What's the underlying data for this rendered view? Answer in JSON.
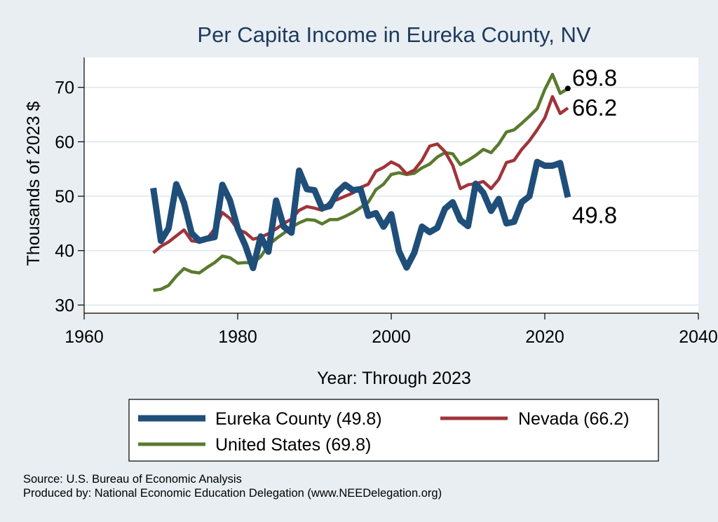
{
  "chart_data": {
    "type": "line",
    "title": "Per Capita Income in Eureka County, NV",
    "xlabel": "Year: Through 2023",
    "ylabel": "Thousands of 2023 $",
    "xlim": [
      1960,
      2040
    ],
    "ylim": [
      28.5,
      75.5
    ],
    "xticks": [
      1960,
      1980,
      2000,
      2020,
      2040
    ],
    "yticks": [
      30,
      40,
      50,
      60,
      70
    ],
    "x": [
      1969,
      1970,
      1971,
      1972,
      1973,
      1974,
      1975,
      1976,
      1977,
      1978,
      1979,
      1980,
      1981,
      1982,
      1983,
      1984,
      1985,
      1986,
      1987,
      1988,
      1989,
      1990,
      1991,
      1992,
      1993,
      1994,
      1995,
      1996,
      1997,
      1998,
      1999,
      2000,
      2001,
      2002,
      2003,
      2004,
      2005,
      2006,
      2007,
      2008,
      2009,
      2010,
      2011,
      2012,
      2013,
      2014,
      2015,
      2016,
      2017,
      2018,
      2019,
      2020,
      2021,
      2022,
      2023
    ],
    "series": [
      {
        "name": "Eureka County",
        "color": "#1f4e79",
        "values": [
          51.5,
          41.8,
          44.1,
          52.2,
          48.8,
          43.2,
          41.8,
          42.2,
          42.5,
          52.1,
          49.2,
          44.1,
          40.9,
          36.8,
          42.6,
          39.8,
          49.2,
          44.4,
          43.3,
          54.7,
          51.3,
          51.1,
          47.8,
          48.2,
          50.8,
          52.1,
          51.1,
          51.3,
          46.4,
          46.9,
          44.4,
          46.7,
          39.9,
          36.9,
          39.6,
          44.4,
          43.4,
          44.2,
          47.7,
          48.9,
          45.6,
          44.5,
          52.3,
          50.6,
          47.3,
          49.5,
          45.0,
          45.3,
          48.9,
          50.0,
          56.3,
          55.6,
          55.6,
          56.1,
          49.8
        ]
      },
      {
        "name": "Nevada",
        "color": "#a0343a",
        "values": [
          39.6,
          40.8,
          41.6,
          42.7,
          43.8,
          41.8,
          41.6,
          42.2,
          44.0,
          47.0,
          45.9,
          43.9,
          43.3,
          42.1,
          42.5,
          43.1,
          44.0,
          45.0,
          45.8,
          47.4,
          48.1,
          47.8,
          47.4,
          48.9,
          49.4,
          50.0,
          50.6,
          51.6,
          52.2,
          54.6,
          55.3,
          56.3,
          55.6,
          54.1,
          54.8,
          56.6,
          59.2,
          59.6,
          58.2,
          55.7,
          51.4,
          52.1,
          52.3,
          52.7,
          51.4,
          53.1,
          56.2,
          56.6,
          58.6,
          60.2,
          62.2,
          64.4,
          68.3,
          65.2,
          66.2
        ]
      },
      {
        "name": "United States",
        "color": "#5a7a2e",
        "values": [
          32.7,
          32.9,
          33.6,
          35.3,
          36.7,
          36.1,
          35.9,
          36.9,
          37.8,
          39.0,
          38.7,
          37.7,
          37.8,
          37.7,
          38.9,
          41.0,
          42.2,
          43.2,
          44.3,
          45.1,
          45.7,
          45.6,
          44.9,
          45.7,
          45.7,
          46.3,
          47.0,
          47.9,
          48.9,
          51.2,
          52.2,
          54.0,
          54.3,
          54.0,
          54.2,
          55.2,
          55.9,
          57.2,
          58.0,
          57.8,
          55.8,
          56.6,
          57.5,
          58.6,
          58.0,
          59.6,
          61.8,
          62.2,
          63.4,
          64.7,
          66.1,
          69.6,
          72.4,
          68.9,
          69.8
        ]
      }
    ],
    "end_labels": [
      "69.8",
      "66.2",
      "49.8"
    ],
    "legend": {
      "position": "bottom",
      "entries": [
        "Eureka County (49.8)",
        "Nevada (66.2)",
        "United States (69.8)"
      ]
    },
    "notes": [
      "Source: U.S. Bureau of Economic Analysis",
      "Produced by: National Economic Education Delegation (www.NEEDelegation.org)"
    ],
    "colors": {
      "background": "#e8eef2",
      "plot_background": "#ffffff",
      "grid": "#dde6ec",
      "title": "#1e3a5f"
    }
  }
}
